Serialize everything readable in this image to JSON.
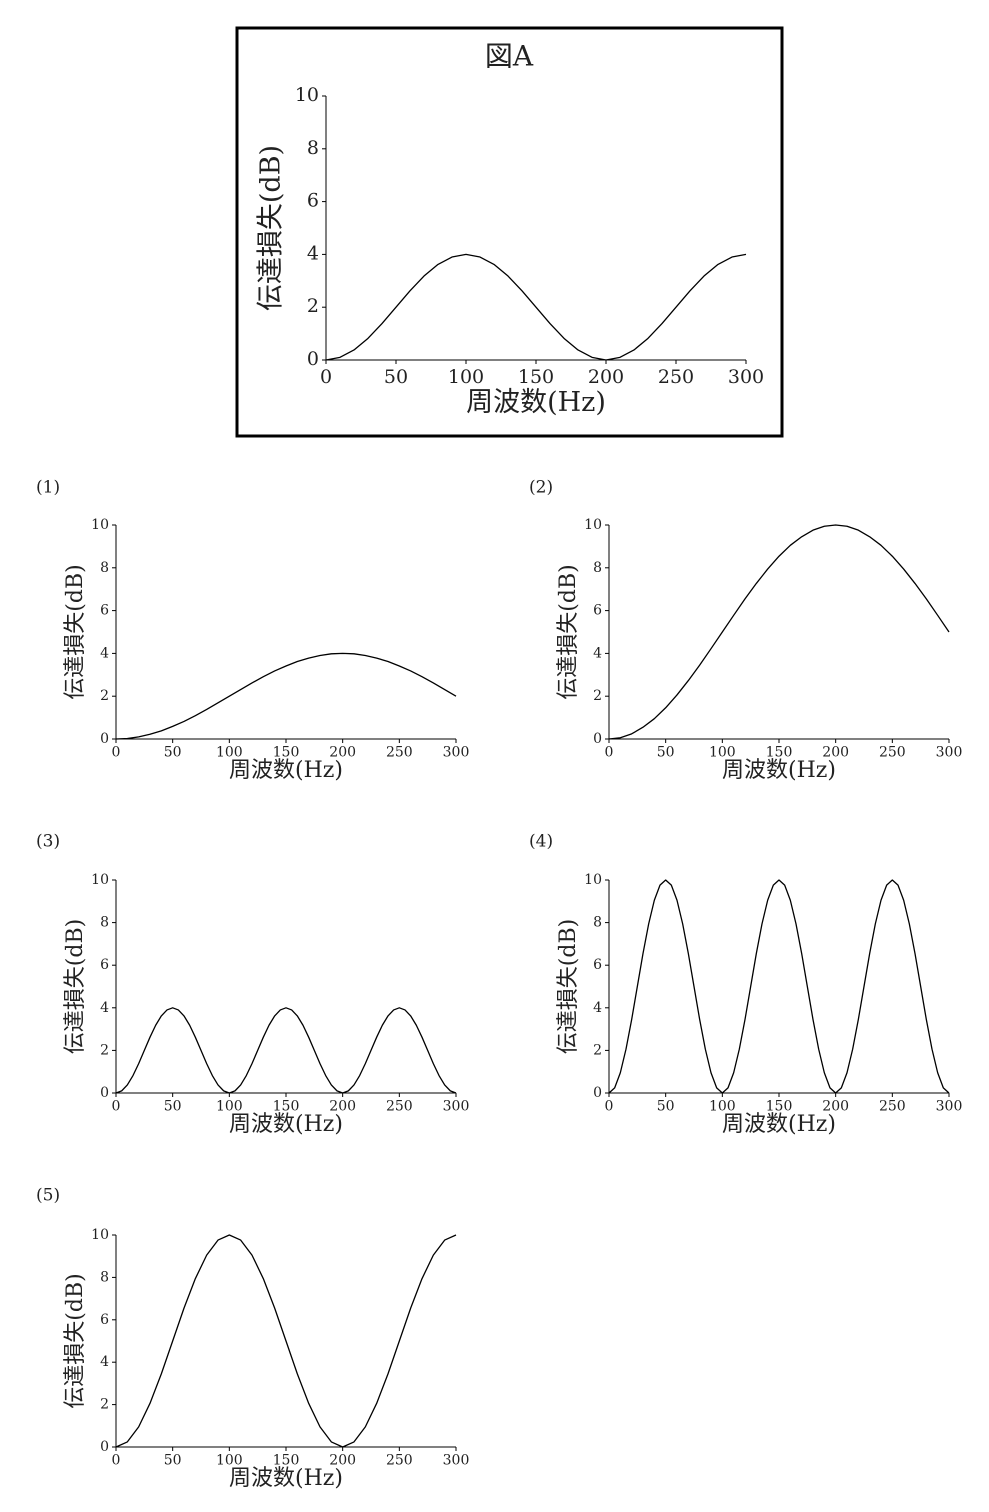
{
  "chart_data": [
    {
      "type": "line",
      "title": "図A",
      "x_label": "周波数(Hz)",
      "y_label": "伝達損失(dB)",
      "x": [
        0,
        10,
        20,
        30,
        40,
        50,
        60,
        70,
        80,
        90,
        100,
        110,
        120,
        130,
        140,
        150,
        160,
        170,
        180,
        190,
        200,
        210,
        220,
        230,
        240,
        250,
        260,
        270,
        280,
        290,
        300
      ],
      "series": [
        {
          "color": "#000000",
          "values": [
            0,
            0.1,
            0.38,
            0.82,
            1.38,
            2,
            2.62,
            3.18,
            3.62,
            3.9,
            4,
            3.9,
            3.62,
            3.18,
            2.62,
            2,
            1.38,
            0.82,
            0.38,
            0.1,
            0,
            0.1,
            0.38,
            0.82,
            1.38,
            2,
            2.62,
            3.18,
            3.62,
            3.9,
            4
          ]
        }
      ],
      "xlim": [
        0,
        300
      ],
      "xticks": [
        0,
        50,
        100,
        150,
        200,
        250,
        300
      ],
      "ylim": [
        0,
        10
      ],
      "yticks": [
        0,
        2,
        4,
        6,
        8,
        10
      ]
    },
    {
      "type": "line",
      "title": "(1)",
      "x_label": "周波数(Hz)",
      "y_label": "伝達損失(dB)",
      "x": [
        0,
        10,
        20,
        30,
        40,
        50,
        60,
        70,
        80,
        90,
        100,
        110,
        120,
        130,
        140,
        150,
        160,
        170,
        180,
        190,
        200,
        210,
        220,
        230,
        240,
        250,
        260,
        270,
        280,
        290,
        300
      ],
      "series": [
        {
          "color": "#000000",
          "values": [
            0,
            0.02,
            0.1,
            0.22,
            0.38,
            0.59,
            0.82,
            1.09,
            1.38,
            1.69,
            2,
            2.31,
            2.62,
            2.91,
            3.18,
            3.41,
            3.62,
            3.78,
            3.9,
            3.98,
            4,
            3.98,
            3.9,
            3.78,
            3.62,
            3.41,
            3.18,
            2.91,
            2.62,
            2.31,
            2
          ]
        }
      ],
      "xlim": [
        0,
        300
      ],
      "xticks": [
        0,
        50,
        100,
        150,
        200,
        250,
        300
      ],
      "ylim": [
        0,
        10
      ],
      "yticks": [
        0,
        2,
        4,
        6,
        8,
        10
      ]
    },
    {
      "type": "line",
      "title": "(2)",
      "x_label": "周波数(Hz)",
      "y_label": "伝達損失(dB)",
      "x": [
        0,
        10,
        20,
        30,
        40,
        50,
        60,
        70,
        80,
        90,
        100,
        110,
        120,
        130,
        140,
        150,
        160,
        170,
        180,
        190,
        200,
        210,
        220,
        230,
        240,
        250,
        260,
        270,
        280,
        290,
        300
      ],
      "series": [
        {
          "color": "#000000",
          "values": [
            0,
            0.06,
            0.24,
            0.55,
            0.95,
            1.46,
            2.06,
            2.73,
            3.45,
            4.22,
            5,
            5.78,
            6.55,
            7.27,
            7.94,
            8.54,
            9.05,
            9.45,
            9.76,
            9.94,
            10,
            9.94,
            9.76,
            9.45,
            9.05,
            8.54,
            7.94,
            7.27,
            6.55,
            5.78,
            5
          ]
        }
      ],
      "xlim": [
        0,
        300
      ],
      "xticks": [
        0,
        50,
        100,
        150,
        200,
        250,
        300
      ],
      "ylim": [
        0,
        10
      ],
      "yticks": [
        0,
        2,
        4,
        6,
        8,
        10
      ]
    },
    {
      "type": "line",
      "title": "(3)",
      "x_label": "周波数(Hz)",
      "y_label": "伝達損失(dB)",
      "x": [
        0,
        5,
        10,
        15,
        20,
        25,
        30,
        35,
        40,
        45,
        50,
        55,
        60,
        65,
        70,
        75,
        80,
        85,
        90,
        95,
        100,
        105,
        110,
        115,
        120,
        125,
        130,
        135,
        140,
        145,
        150,
        155,
        160,
        165,
        170,
        175,
        180,
        185,
        190,
        195,
        200,
        205,
        210,
        215,
        220,
        225,
        230,
        235,
        240,
        245,
        250,
        255,
        260,
        265,
        270,
        275,
        280,
        285,
        290,
        295,
        300
      ],
      "series": [
        {
          "color": "#000000",
          "values": [
            0,
            0.1,
            0.38,
            0.82,
            1.38,
            2,
            2.62,
            3.18,
            3.62,
            3.9,
            4,
            3.9,
            3.62,
            3.18,
            2.62,
            2,
            1.38,
            0.82,
            0.38,
            0.1,
            0,
            0.1,
            0.38,
            0.82,
            1.38,
            2,
            2.62,
            3.18,
            3.62,
            3.9,
            4,
            3.9,
            3.62,
            3.18,
            2.62,
            2,
            1.38,
            0.82,
            0.38,
            0.1,
            0,
            0.1,
            0.38,
            0.82,
            1.38,
            2,
            2.62,
            3.18,
            3.62,
            3.9,
            4,
            3.9,
            3.62,
            3.18,
            2.62,
            2,
            1.38,
            0.82,
            0.38,
            0.1,
            0
          ]
        }
      ],
      "xlim": [
        0,
        300
      ],
      "xticks": [
        0,
        50,
        100,
        150,
        200,
        250,
        300
      ],
      "ylim": [
        0,
        10
      ],
      "yticks": [
        0,
        2,
        4,
        6,
        8,
        10
      ]
    },
    {
      "type": "line",
      "title": "(4)",
      "x_label": "周波数(Hz)",
      "y_label": "伝達損失(dB)",
      "x": [
        0,
        5,
        10,
        15,
        20,
        25,
        30,
        35,
        40,
        45,
        50,
        55,
        60,
        65,
        70,
        75,
        80,
        85,
        90,
        95,
        100,
        105,
        110,
        115,
        120,
        125,
        130,
        135,
        140,
        145,
        150,
        155,
        160,
        165,
        170,
        175,
        180,
        185,
        190,
        195,
        200,
        205,
        210,
        215,
        220,
        225,
        230,
        235,
        240,
        245,
        250,
        255,
        260,
        265,
        270,
        275,
        280,
        285,
        290,
        295,
        300
      ],
      "series": [
        {
          "color": "#000000",
          "values": [
            0,
            0.24,
            0.95,
            2.06,
            3.45,
            5,
            6.55,
            7.94,
            9.05,
            9.76,
            10,
            9.76,
            9.05,
            7.94,
            6.55,
            5,
            3.45,
            2.06,
            0.95,
            0.24,
            0,
            0.24,
            0.95,
            2.06,
            3.45,
            5,
            6.55,
            7.94,
            9.05,
            9.76,
            10,
            9.76,
            9.05,
            7.94,
            6.55,
            5,
            3.45,
            2.06,
            0.95,
            0.24,
            0,
            0.24,
            0.95,
            2.06,
            3.45,
            5,
            6.55,
            7.94,
            9.05,
            9.76,
            10,
            9.76,
            9.05,
            7.94,
            6.55,
            5,
            3.45,
            2.06,
            0.95,
            0.24,
            0
          ]
        }
      ],
      "xlim": [
        0,
        300
      ],
      "xticks": [
        0,
        50,
        100,
        150,
        200,
        250,
        300
      ],
      "ylim": [
        0,
        10
      ],
      "yticks": [
        0,
        2,
        4,
        6,
        8,
        10
      ]
    },
    {
      "type": "line",
      "title": "(5)",
      "x_label": "周波数(Hz)",
      "y_label": "伝達損失(dB)",
      "x": [
        0,
        10,
        20,
        30,
        40,
        50,
        60,
        70,
        80,
        90,
        100,
        110,
        120,
        130,
        140,
        150,
        160,
        170,
        180,
        190,
        200,
        210,
        220,
        230,
        240,
        250,
        260,
        270,
        280,
        290,
        300
      ],
      "series": [
        {
          "color": "#000000",
          "values": [
            0,
            0.24,
            0.95,
            2.06,
            3.45,
            5,
            6.55,
            7.94,
            9.05,
            9.76,
            10,
            9.76,
            9.05,
            7.94,
            6.55,
            5,
            3.45,
            2.06,
            0.95,
            0.24,
            0,
            0.24,
            0.95,
            2.06,
            3.45,
            5,
            6.55,
            7.94,
            9.05,
            9.76,
            10
          ]
        }
      ],
      "xlim": [
        0,
        300
      ],
      "xticks": [
        0,
        50,
        100,
        150,
        200,
        250,
        300
      ],
      "ylim": [
        0,
        10
      ],
      "yticks": [
        0,
        2,
        4,
        6,
        8,
        10
      ]
    }
  ]
}
